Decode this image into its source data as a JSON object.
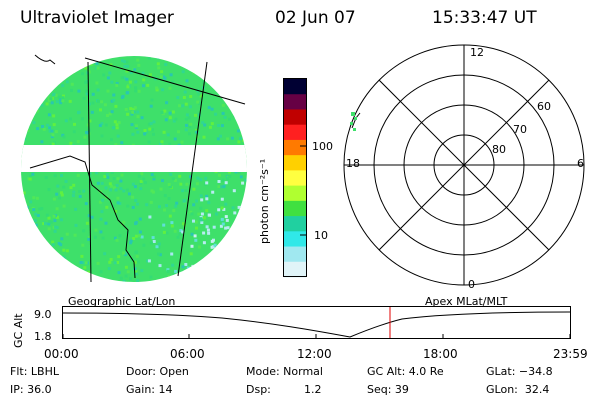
{
  "header": {
    "title": "Ultraviolet Imager",
    "date": "02 Jun 07",
    "time": "15:33:47 UT"
  },
  "left_panel": {
    "caption": "Geographic Lat/Lon"
  },
  "colorbar": {
    "unit_label": "photon cm⁻²s⁻¹",
    "tick_100": "100",
    "tick_10": "10",
    "scale": "log",
    "colors": [
      "#000033",
      "#660044",
      "#c00000",
      "#ff2020",
      "#ff7a00",
      "#ffd000",
      "#ffff40",
      "#b0ff30",
      "#40e040",
      "#20d0a0",
      "#30e8e8",
      "#a0e8f0",
      "#e0f4f8"
    ]
  },
  "polar_panel": {
    "caption": "Apex MLat/MLT",
    "mlt_labels": {
      "top": "12",
      "right": "6",
      "bottom": "0",
      "left": "18"
    },
    "mlat_labels": [
      "60",
      "70",
      "80"
    ]
  },
  "altitude_plot": {
    "ylabel": "GC Alt",
    "y_max_label": "9.0",
    "y_min_label": "1.8",
    "x_ticks": [
      "00:00",
      "06:00",
      "12:00",
      "18:00",
      "23:59"
    ],
    "current_time_marker_color": "#e00000"
  },
  "info": {
    "flt": "Flt: LBHL",
    "ip": "IP: 36.0",
    "door": "Door: Open",
    "gain": "Gain: 14",
    "mode": "Mode: Normal",
    "dsp_label": "Dsp:",
    "dsp_value": "1.2",
    "gc_alt": "GC Alt: 4.0 Re",
    "seq": "Seq: 39",
    "glat": "GLat: −34.8",
    "glon": "GLon:  32.4"
  }
}
